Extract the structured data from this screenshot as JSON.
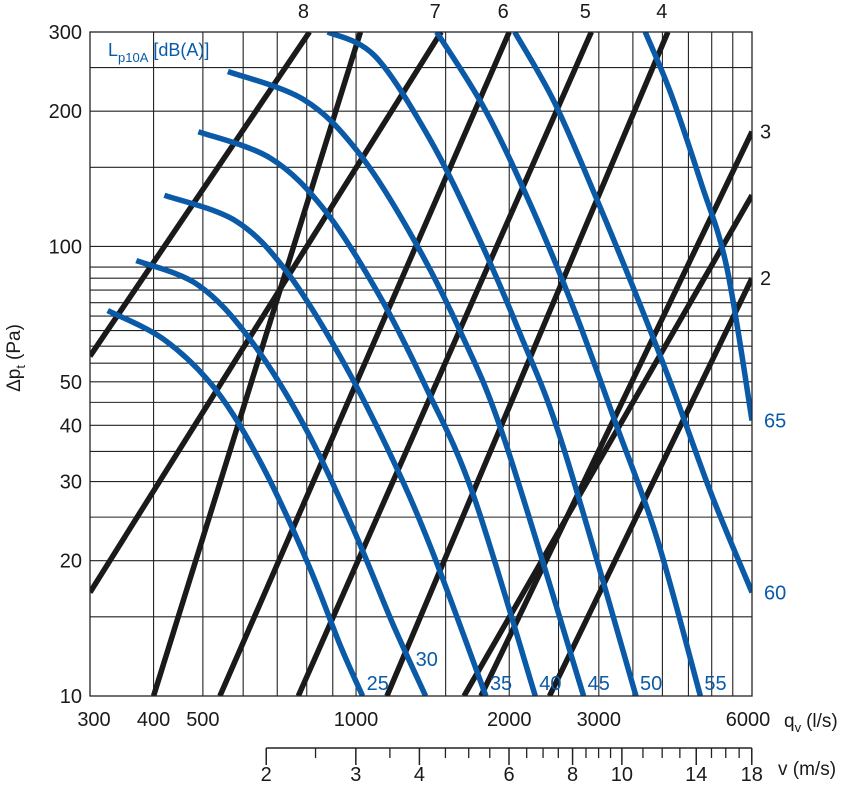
{
  "colors": {
    "curve": "#0a5aa8",
    "line": "#1a1a1a",
    "grid": "#222222"
  },
  "chart_data": {
    "type": "line",
    "title": "",
    "legend_title": {
      "main": "L",
      "sub": "p10A",
      "unit": "[dB(A)]"
    },
    "xlabel": {
      "main": "q",
      "sub": "v",
      "unit": "(l/s)"
    },
    "ylabel": {
      "main": "Δp",
      "sub": "t",
      "unit": "(Pa)"
    },
    "x2label": "v (m/s)",
    "x_scale": "log",
    "y_scale": "log",
    "xlim": [
      300,
      6000
    ],
    "ylim": [
      10,
      300
    ],
    "x_ticks": [
      {
        "value": 300,
        "label": "300"
      },
      {
        "value": 400,
        "label": "400"
      },
      {
        "value": 500,
        "label": "500"
      },
      {
        "value": 1000,
        "label": "1000"
      },
      {
        "value": 2000,
        "label": "2000"
      },
      {
        "value": 3000,
        "label": "3000"
      },
      {
        "value": 6000,
        "label": "6000"
      }
    ],
    "y_ticks": [
      {
        "value": 10,
        "label": "10"
      },
      {
        "value": 20,
        "label": "20"
      },
      {
        "value": 30,
        "label": "30"
      },
      {
        "value": 40,
        "label": "40"
      },
      {
        "value": 50,
        "label": "50"
      },
      {
        "value": 100,
        "label": "100"
      },
      {
        "value": 200,
        "label": "200"
      },
      {
        "value": 300,
        "label": "300"
      }
    ],
    "velocity_axis": {
      "qv_per_ms": 333,
      "range": [
        2,
        18
      ],
      "labeled": [
        2,
        3,
        4,
        6,
        8,
        10,
        14,
        18
      ],
      "minor": [
        2.5,
        3.5,
        4.5,
        5,
        5.5,
        6.5,
        7,
        7.5,
        8.5,
        9,
        9.5,
        11,
        12,
        13,
        15,
        16,
        17
      ]
    },
    "size_lines": [
      {
        "name": "8",
        "points": [
          [
            300,
            57
          ],
          [
            810,
            300
          ]
        ]
      },
      {
        "name": "7",
        "points": [
          [
            300,
            17
          ],
          [
            1470,
            300
          ]
        ]
      },
      {
        "name": "6",
        "points": [
          [
            540,
            10
          ],
          [
            2000,
            300
          ]
        ]
      },
      {
        "name": "5",
        "points": [
          [
            770,
            10
          ],
          [
            2900,
            300
          ]
        ]
      },
      {
        "name": "4",
        "points": [
          [
            1150,
            10
          ],
          [
            4100,
            300
          ]
        ]
      },
      {
        "name": "3",
        "points": [
          [
            1760,
            10
          ],
          [
            6000,
            180
          ]
        ]
      },
      {
        "name": "2",
        "points": [
          [
            2400,
            10
          ],
          [
            6000,
            85
          ]
        ]
      },
      {
        "name": "",
        "points": [
          [
            400,
            10
          ],
          [
            1020,
            300
          ]
        ]
      },
      {
        "name": "",
        "points": [
          [
            1630,
            10
          ],
          [
            6000,
            130
          ]
        ]
      }
    ],
    "series": [
      {
        "name": "25",
        "points": [
          [
            325,
            72
          ],
          [
            420,
            62
          ],
          [
            530,
            48
          ],
          [
            650,
            33
          ],
          [
            800,
            20
          ],
          [
            930,
            13
          ],
          [
            1030,
            10
          ]
        ]
      },
      {
        "name": "30",
        "points": [
          [
            370,
            93
          ],
          [
            490,
            82
          ],
          [
            620,
            62
          ],
          [
            790,
            40
          ],
          [
            980,
            24
          ],
          [
            1180,
            14.5
          ],
          [
            1370,
            10
          ]
        ]
      },
      {
        "name": "35",
        "points": [
          [
            420,
            130
          ],
          [
            580,
            114
          ],
          [
            730,
            88
          ],
          [
            930,
            57
          ],
          [
            1160,
            35
          ],
          [
            1400,
            21.5
          ],
          [
            1800,
            10
          ]
        ]
      },
      {
        "name": "40",
        "points": [
          [
            490,
            180
          ],
          [
            680,
            157
          ],
          [
            870,
            120
          ],
          [
            1110,
            78
          ],
          [
            1380,
            48
          ],
          [
            1700,
            28
          ],
          [
            2250,
            10
          ]
        ]
      },
      {
        "name": "45",
        "points": [
          [
            560,
            245
          ],
          [
            790,
            212
          ],
          [
            1010,
            162
          ],
          [
            1290,
            105
          ],
          [
            1610,
            64
          ],
          [
            1960,
            37
          ],
          [
            2800,
            10
          ]
        ]
      },
      {
        "name": "50",
        "points": [
          [
            880,
            300
          ],
          [
            1090,
            265
          ],
          [
            1390,
            175
          ],
          [
            1720,
            108
          ],
          [
            2100,
            64
          ],
          [
            2550,
            36
          ],
          [
            3550,
            10
          ]
        ]
      },
      {
        "name": "55",
        "points": [
          [
            1440,
            300
          ],
          [
            1800,
            200
          ],
          [
            2230,
            120
          ],
          [
            2700,
            71
          ],
          [
            3250,
            40
          ],
          [
            3900,
            22.5
          ],
          [
            4750,
            10
          ]
        ]
      },
      {
        "name": "60",
        "points": [
          [
            2050,
            300
          ],
          [
            2450,
            210
          ],
          [
            2950,
            130
          ],
          [
            3520,
            80
          ],
          [
            4200,
            48
          ],
          [
            5000,
            28
          ],
          [
            6000,
            17
          ]
        ]
      },
      {
        "name": "65",
        "points": [
          [
            3700,
            300
          ],
          [
            4150,
            220
          ],
          [
            4750,
            140
          ],
          [
            5350,
            90
          ],
          [
            6000,
            41
          ]
        ]
      }
    ]
  }
}
